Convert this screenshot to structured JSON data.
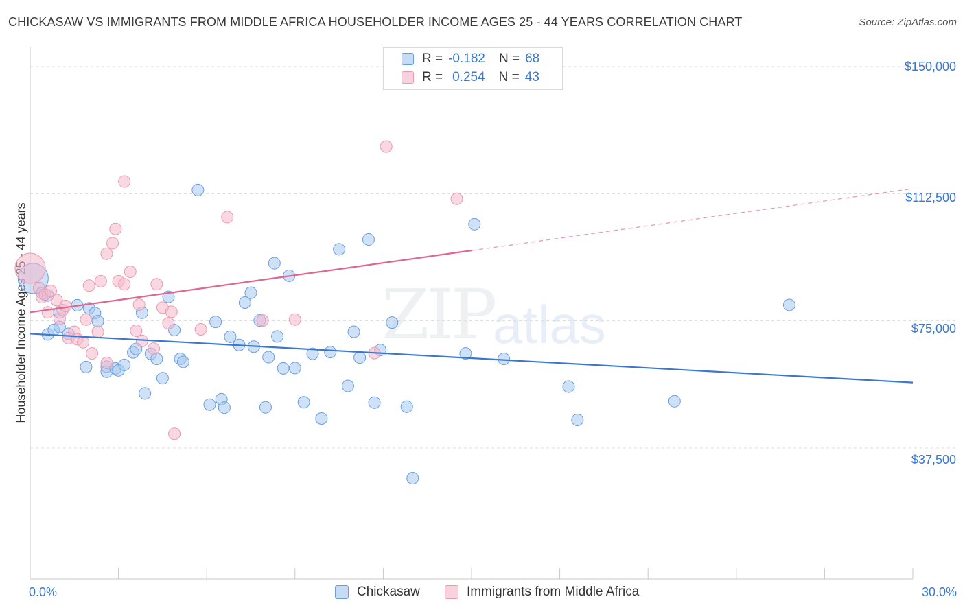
{
  "header": {
    "title": "CHICKASAW VS IMMIGRANTS FROM MIDDLE AFRICA HOUSEHOLDER INCOME AGES 25 - 44 YEARS CORRELATION CHART",
    "source": "Source: ZipAtlas.com"
  },
  "watermark": {
    "part1": "ZIP",
    "part2": "atlas"
  },
  "legend_top": {
    "rows": [
      {
        "r_label": "R =",
        "r_value": "-0.182",
        "n_label": "N =",
        "n_value": "68",
        "color": "#a8c8f0"
      },
      {
        "r_label": "R =",
        "r_value": "0.254",
        "n_label": "N =",
        "n_value": "43",
        "color": "#f5b8cb"
      }
    ]
  },
  "chart_data": {
    "type": "scatter",
    "title": "CHICKASAW VS IMMIGRANTS FROM MIDDLE AFRICA HOUSEHOLDER INCOME AGES 25 - 44 YEARS CORRELATION CHART",
    "xlabel": "",
    "ylabel": "Householder Income Ages 25 - 44 years",
    "xlim": [
      0,
      30
    ],
    "ylim": [
      0,
      155000
    ],
    "x_tick_labels": [
      "0.0%",
      "30.0%"
    ],
    "y_ticks": [
      37500,
      75000,
      112500,
      150000
    ],
    "y_tick_labels": [
      "$37,500",
      "$75,000",
      "$112,500",
      "$150,000"
    ],
    "grid": true,
    "legend_position": "top-center",
    "series": [
      {
        "name": "Chickasaw",
        "color": "#3a78cf",
        "fill": "#a8c8f0",
        "trend": {
          "x0": 0,
          "y0": 71200,
          "x1": 30,
          "y1": 56800,
          "dashed_from": null
        },
        "points": [
          [
            0.1,
            87500
          ],
          [
            0.4,
            83200
          ],
          [
            0.6,
            82500
          ],
          [
            0.6,
            71000
          ],
          [
            0.8,
            72300
          ],
          [
            1.0,
            73200
          ],
          [
            1.0,
            77500
          ],
          [
            1.3,
            71200
          ],
          [
            1.6,
            79600
          ],
          [
            1.9,
            61400
          ],
          [
            2.0,
            78700
          ],
          [
            2.2,
            77300
          ],
          [
            2.3,
            74900
          ],
          [
            2.6,
            61500
          ],
          [
            2.6,
            60000
          ],
          [
            2.9,
            61000
          ],
          [
            3.0,
            60400
          ],
          [
            3.2,
            62000
          ],
          [
            3.5,
            65700
          ],
          [
            3.6,
            66700
          ],
          [
            3.8,
            77400
          ],
          [
            3.9,
            53600
          ],
          [
            4.1,
            65300
          ],
          [
            4.3,
            63800
          ],
          [
            4.5,
            58100
          ],
          [
            4.7,
            82100
          ],
          [
            4.9,
            72300
          ],
          [
            5.1,
            63800
          ],
          [
            5.2,
            62900
          ],
          [
            5.7,
            113600
          ],
          [
            6.1,
            50300
          ],
          [
            6.3,
            74700
          ],
          [
            6.5,
            51900
          ],
          [
            6.6,
            49400
          ],
          [
            6.8,
            70300
          ],
          [
            7.1,
            67900
          ],
          [
            7.3,
            80400
          ],
          [
            7.5,
            83300
          ],
          [
            7.6,
            67400
          ],
          [
            7.8,
            75100
          ],
          [
            8.0,
            49500
          ],
          [
            8.1,
            64300
          ],
          [
            8.3,
            92000
          ],
          [
            8.4,
            70400
          ],
          [
            8.6,
            61000
          ],
          [
            8.8,
            88300
          ],
          [
            9.0,
            61100
          ],
          [
            9.3,
            51000
          ],
          [
            9.6,
            65300
          ],
          [
            9.9,
            46200
          ],
          [
            10.2,
            65800
          ],
          [
            10.5,
            96100
          ],
          [
            10.8,
            55800
          ],
          [
            11.0,
            71800
          ],
          [
            11.2,
            64200
          ],
          [
            11.5,
            99000
          ],
          [
            11.7,
            50900
          ],
          [
            11.9,
            66400
          ],
          [
            12.3,
            74500
          ],
          [
            12.8,
            49700
          ],
          [
            13.0,
            28600
          ],
          [
            14.8,
            65400
          ],
          [
            15.1,
            103500
          ],
          [
            16.1,
            63800
          ],
          [
            18.3,
            55600
          ],
          [
            18.6,
            45800
          ],
          [
            21.9,
            51300
          ],
          [
            25.8,
            79700
          ]
        ]
      },
      {
        "name": "Immigrants from Middle Africa",
        "color": "#e0658f",
        "fill": "#f5b8cb",
        "trend": {
          "x0": 0,
          "y0": 77500,
          "x1": 30,
          "y1": 114000,
          "dashed_from": 15.0
        },
        "points": [
          [
            0.0,
            90500
          ],
          [
            0.3,
            84700
          ],
          [
            0.4,
            82000
          ],
          [
            0.5,
            82800
          ],
          [
            0.6,
            77500
          ],
          [
            0.7,
            83800
          ],
          [
            0.9,
            81100
          ],
          [
            1.0,
            75600
          ],
          [
            1.1,
            78200
          ],
          [
            1.2,
            79400
          ],
          [
            1.3,
            69900
          ],
          [
            1.5,
            71800
          ],
          [
            1.6,
            69600
          ],
          [
            1.8,
            68700
          ],
          [
            1.9,
            75400
          ],
          [
            2.0,
            85400
          ],
          [
            2.1,
            65400
          ],
          [
            2.3,
            71800
          ],
          [
            2.4,
            86700
          ],
          [
            2.6,
            94800
          ],
          [
            2.6,
            62600
          ],
          [
            2.8,
            97900
          ],
          [
            2.9,
            102100
          ],
          [
            3.0,
            86700
          ],
          [
            3.2,
            85800
          ],
          [
            3.2,
            116100
          ],
          [
            3.4,
            89500
          ],
          [
            3.6,
            72100
          ],
          [
            3.7,
            79800
          ],
          [
            3.8,
            69100
          ],
          [
            4.2,
            66800
          ],
          [
            4.3,
            85800
          ],
          [
            4.5,
            78900
          ],
          [
            4.7,
            74300
          ],
          [
            4.8,
            77700
          ],
          [
            4.9,
            41700
          ],
          [
            5.8,
            72500
          ],
          [
            6.7,
            105600
          ],
          [
            7.9,
            75100
          ],
          [
            9.0,
            75400
          ],
          [
            11.7,
            65500
          ],
          [
            12.1,
            126400
          ],
          [
            14.5,
            111000
          ]
        ]
      }
    ]
  },
  "legend_bottom": {
    "items": [
      {
        "label": "Chickasaw",
        "color": "#a8c8f0",
        "border": "#6a9ee0"
      },
      {
        "label": "Immigrants from Middle Africa",
        "color": "#f5cbd8",
        "border": "#e89ab3"
      }
    ]
  }
}
